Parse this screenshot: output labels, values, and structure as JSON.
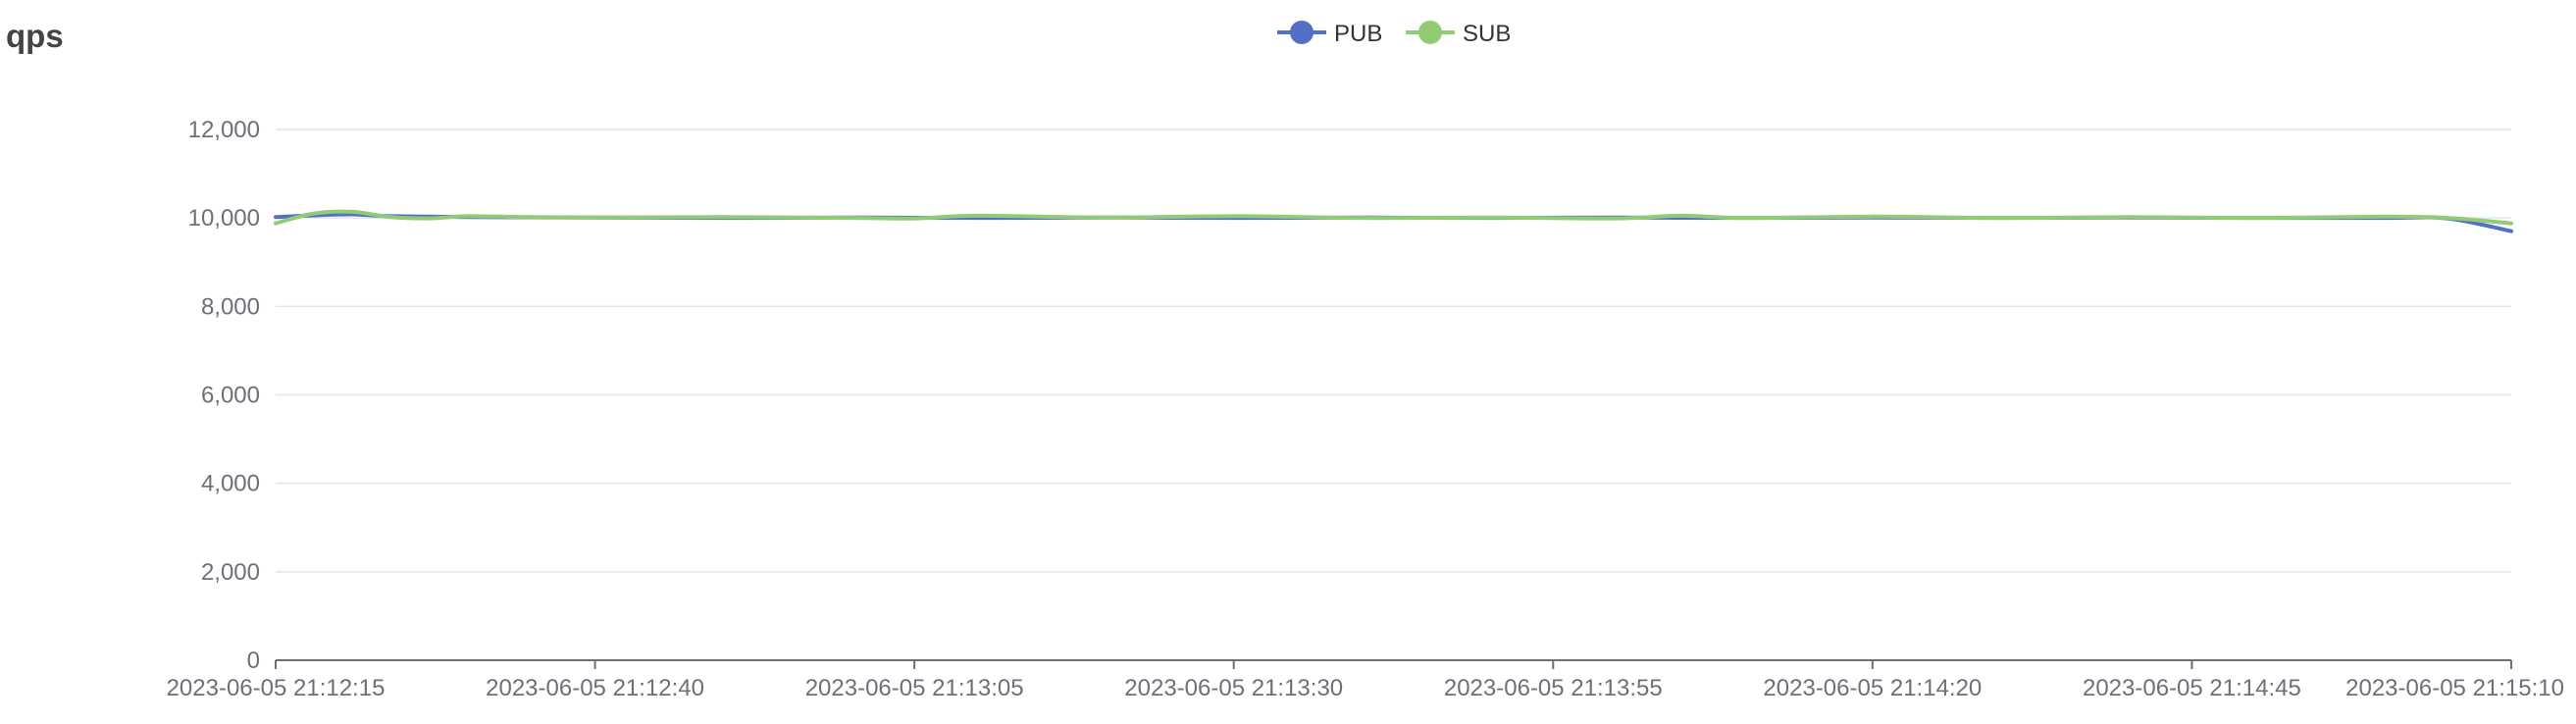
{
  "panel": {
    "title": "qps"
  },
  "chart_data": {
    "type": "line",
    "title": "qps",
    "xlabel": "",
    "ylabel": "",
    "ylim": [
      0,
      12000
    ],
    "yticks": [
      0,
      2000,
      4000,
      6000,
      8000,
      10000,
      12000
    ],
    "ytick_labels": [
      "0",
      "2,000",
      "4,000",
      "6,000",
      "8,000",
      "10,000",
      "12,000"
    ],
    "xtick_labels": [
      "2023-06-05 21:12:15",
      "2023-06-05 21:12:40",
      "2023-06-05 21:13:05",
      "2023-06-05 21:13:30",
      "2023-06-05 21:13:55",
      "2023-06-05 21:14:20",
      "2023-06-05 21:14:45",
      "2023-06-05 21:15:10"
    ],
    "x_start": "2023-06-05 21:12:15",
    "x_end": "2023-06-05 21:15:10",
    "grid": true,
    "legend_position": "top-center",
    "series": [
      {
        "name": "PUB",
        "color": "#5470c6",
        "x": [
          "2023-06-05 21:12:15",
          "2023-06-05 21:12:18",
          "2023-06-05 21:12:21",
          "2023-06-05 21:12:24",
          "2023-06-05 21:12:30",
          "2023-06-05 21:12:40",
          "2023-06-05 21:12:50",
          "2023-06-05 21:13:00",
          "2023-06-05 21:13:10",
          "2023-06-05 21:13:20",
          "2023-06-05 21:13:30",
          "2023-06-05 21:13:40",
          "2023-06-05 21:13:50",
          "2023-06-05 21:14:00",
          "2023-06-05 21:14:10",
          "2023-06-05 21:14:20",
          "2023-06-05 21:14:30",
          "2023-06-05 21:14:40",
          "2023-06-05 21:14:50",
          "2023-06-05 21:15:00",
          "2023-06-05 21:15:05",
          "2023-06-05 21:15:10"
        ],
        "values": [
          10020,
          10060,
          10080,
          10040,
          10020,
          10010,
          10000,
          10010,
          10000,
          10010,
          10000,
          10010,
          10000,
          10010,
          10000,
          10010,
          10000,
          10010,
          10000,
          10000,
          9990,
          9700
        ]
      },
      {
        "name": "SUB",
        "color": "#91cc75",
        "x": [
          "2023-06-05 21:12:15",
          "2023-06-05 21:12:18",
          "2023-06-05 21:12:21",
          "2023-06-05 21:12:24",
          "2023-06-05 21:12:27",
          "2023-06-05 21:12:30",
          "2023-06-05 21:12:35",
          "2023-06-05 21:12:40",
          "2023-06-05 21:12:50",
          "2023-06-05 21:13:00",
          "2023-06-05 21:13:05",
          "2023-06-05 21:13:10",
          "2023-06-05 21:13:20",
          "2023-06-05 21:13:30",
          "2023-06-05 21:13:40",
          "2023-06-05 21:13:50",
          "2023-06-05 21:14:00",
          "2023-06-05 21:14:05",
          "2023-06-05 21:14:10",
          "2023-06-05 21:14:20",
          "2023-06-05 21:14:30",
          "2023-06-05 21:14:40",
          "2023-06-05 21:14:50",
          "2023-06-05 21:15:00",
          "2023-06-05 21:15:05",
          "2023-06-05 21:15:10"
        ],
        "values": [
          9880,
          10100,
          10140,
          10020,
          9990,
          10040,
          10020,
          10010,
          10020,
          10000,
          9990,
          10050,
          10010,
          10040,
          10000,
          10010,
          9990,
          10050,
          10000,
          10030,
          10000,
          10020,
          10000,
          10030,
          10000,
          9880
        ]
      }
    ]
  }
}
